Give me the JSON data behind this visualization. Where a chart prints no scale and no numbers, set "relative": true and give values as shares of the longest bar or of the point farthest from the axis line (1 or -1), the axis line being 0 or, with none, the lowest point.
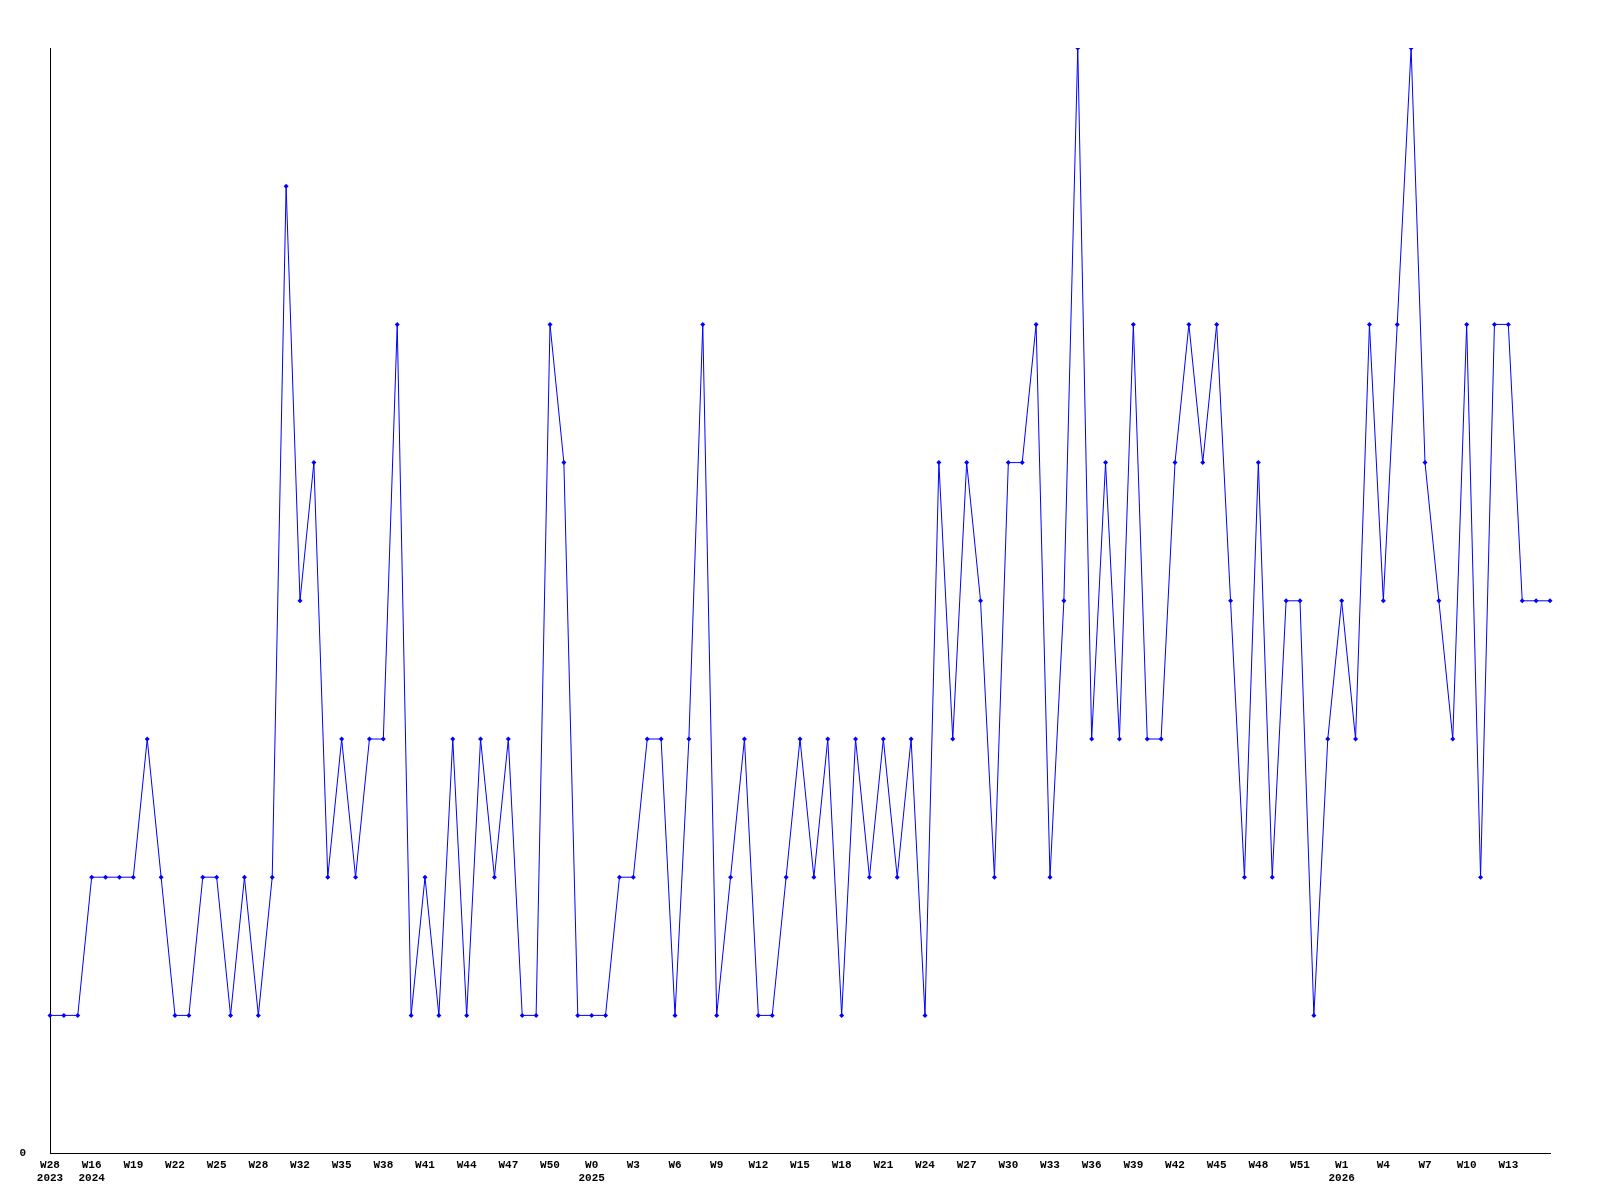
{
  "chart_data": {
    "type": "line",
    "relative": true,
    "marker": "diamond",
    "grid": false,
    "legend": false,
    "categories": [
      "W28\n2023",
      null,
      null,
      "W16\n2024",
      null,
      null,
      "W19",
      null,
      null,
      "W22",
      null,
      null,
      "W25",
      null,
      null,
      "W28",
      null,
      null,
      "W32",
      null,
      null,
      "W35",
      null,
      null,
      "W38",
      null,
      null,
      "W41",
      null,
      null,
      "W44",
      null,
      null,
      "W47",
      null,
      null,
      "W50",
      null,
      null,
      "W0\n2025",
      null,
      null,
      "W3",
      null,
      null,
      "W6",
      null,
      null,
      "W9",
      null,
      null,
      "W12",
      null,
      null,
      "W15",
      null,
      null,
      "W18",
      null,
      null,
      "W21",
      null,
      null,
      "W24",
      null,
      null,
      "W27",
      null,
      null,
      "W30",
      null,
      null,
      "W33",
      null,
      null,
      "W36",
      null,
      null,
      "W39",
      null,
      null,
      "W42",
      null,
      null,
      "W45",
      null,
      null,
      "W48",
      null,
      null,
      "W51",
      null,
      null,
      "W1\n2026",
      null,
      null,
      "W4",
      null,
      null,
      "W7",
      null,
      null,
      "W10",
      null,
      null,
      "W13",
      null,
      null,
      null
    ],
    "series": [
      {
        "color": "#0000ff",
        "values": [
          0.125,
          0.125,
          0.125,
          0.25,
          0.25,
          0.25,
          0.25,
          0.375,
          0.25,
          0.125,
          0.125,
          0.25,
          0.25,
          0.125,
          0.25,
          0.125,
          0.25,
          0.875,
          0.5,
          0.625,
          0.25,
          0.375,
          0.25,
          0.375,
          0.375,
          0.75,
          0.125,
          0.25,
          0.125,
          0.375,
          0.125,
          0.375,
          0.25,
          0.375,
          0.125,
          0.125,
          0.75,
          0.625,
          0.125,
          0.125,
          0.125,
          0.25,
          0.25,
          0.375,
          0.375,
          0.125,
          0.375,
          0.75,
          0.125,
          0.25,
          0.375,
          0.125,
          0.125,
          0.25,
          0.375,
          0.25,
          0.375,
          0.125,
          0.375,
          0.25,
          0.375,
          0.25,
          0.375,
          0.125,
          0.625,
          0.375,
          0.625,
          0.5,
          0.25,
          0.625,
          0.625,
          0.75,
          0.25,
          0.5,
          1,
          0.375,
          0.625,
          0.375,
          0.75,
          0.375,
          0.375,
          0.625,
          0.75,
          0.625,
          0.75,
          0.5,
          0.25,
          0.625,
          0.25,
          0.5,
          0.5,
          0.125,
          0.375,
          0.5,
          0.375,
          0.75,
          0.5,
          0.75,
          1,
          0.625,
          0.5,
          0.375,
          0.75,
          0.25,
          0.75,
          0.75,
          0.5,
          0.5,
          0.5
        ]
      }
    ],
    "annotations": [
      "0"
    ]
  }
}
